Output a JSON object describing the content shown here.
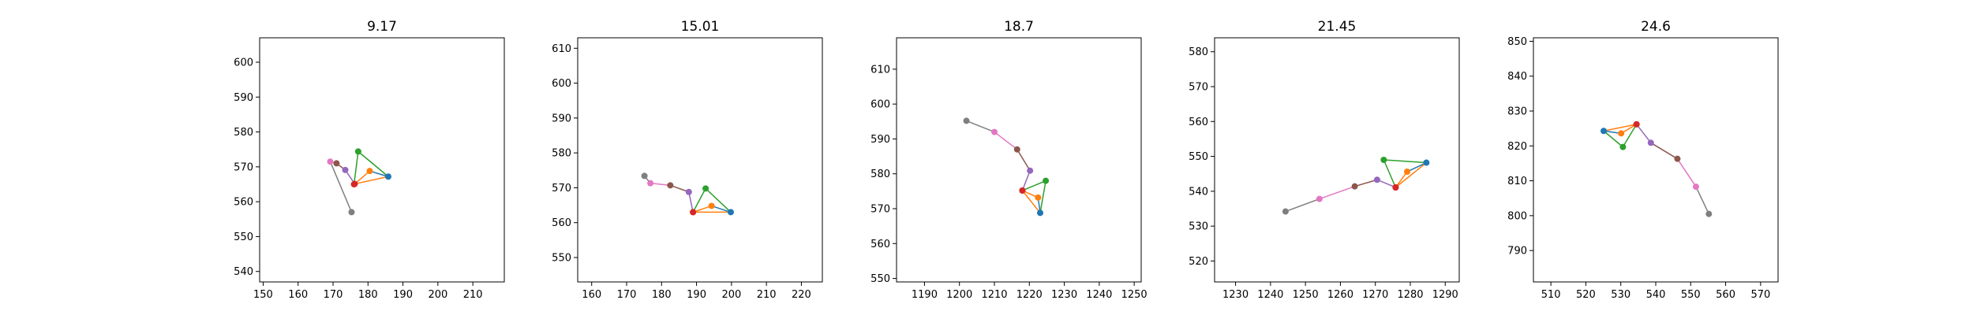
{
  "chart_data": [
    {
      "type": "line",
      "title": "9.17",
      "xlim": [
        149,
        219
      ],
      "ylim": [
        537,
        607
      ],
      "xticks": [
        150,
        160,
        170,
        180,
        190,
        200,
        210
      ],
      "yticks": [
        540,
        550,
        560,
        570,
        580,
        590,
        600
      ],
      "segments": [
        {
          "from": 0,
          "to": 1,
          "color": "#1f77b4"
        },
        {
          "from": 1,
          "to": 2,
          "color": "#ff7f0e"
        },
        {
          "from": 2,
          "to": 0,
          "color": "#ff7f0e"
        },
        {
          "from": 0,
          "to": 3,
          "color": "#2ca02c"
        },
        {
          "from": 3,
          "to": 4,
          "color": "#2ca02c"
        },
        {
          "from": 4,
          "to": 2,
          "color": "#d62728"
        },
        {
          "from": 2,
          "to": 5,
          "color": "#9467bd"
        },
        {
          "from": 5,
          "to": 6,
          "color": "#8c564b"
        },
        {
          "from": 6,
          "to": 7,
          "color": "#e377c2"
        },
        {
          "from": 7,
          "to": 8,
          "color": "#7f7f7f"
        }
      ],
      "points": [
        {
          "x": 185.8,
          "y": 567.2,
          "color": "#1f77b4"
        },
        {
          "x": 180.5,
          "y": 568.8,
          "color": "#ff7f0e"
        },
        {
          "x": 176.2,
          "y": 565.1,
          "color": "#d62728"
        },
        {
          "x": 177.2,
          "y": 574.4,
          "color": "#2ca02c"
        },
        {
          "x": 176.0,
          "y": 565.0,
          "color": "#d62728"
        },
        {
          "x": 173.5,
          "y": 569.1,
          "color": "#9467bd"
        },
        {
          "x": 171.0,
          "y": 571.0,
          "color": "#8c564b"
        },
        {
          "x": 169.2,
          "y": 571.5,
          "color": "#e377c2"
        },
        {
          "x": 175.3,
          "y": 557.0,
          "color": "#7f7f7f"
        }
      ]
    },
    {
      "type": "line",
      "title": "15.01",
      "xlim": [
        156,
        226
      ],
      "ylim": [
        543,
        613
      ],
      "xticks": [
        160,
        170,
        180,
        190,
        200,
        210,
        220
      ],
      "yticks": [
        550,
        560,
        570,
        580,
        590,
        600,
        610
      ],
      "segments": [
        {
          "from": 0,
          "to": 1,
          "color": "#1f77b4"
        },
        {
          "from": 1,
          "to": 2,
          "color": "#ff7f0e"
        },
        {
          "from": 2,
          "to": 0,
          "color": "#ff7f0e"
        },
        {
          "from": 0,
          "to": 3,
          "color": "#2ca02c"
        },
        {
          "from": 3,
          "to": 4,
          "color": "#2ca02c"
        },
        {
          "from": 4,
          "to": 2,
          "color": "#d62728"
        },
        {
          "from": 2,
          "to": 5,
          "color": "#9467bd"
        },
        {
          "from": 5,
          "to": 6,
          "color": "#8c564b"
        },
        {
          "from": 6,
          "to": 7,
          "color": "#e377c2"
        },
        {
          "from": 7,
          "to": 8,
          "color": "#7f7f7f"
        }
      ],
      "points": [
        {
          "x": 199.8,
          "y": 563.0,
          "color": "#1f77b4"
        },
        {
          "x": 194.3,
          "y": 564.8,
          "color": "#ff7f0e"
        },
        {
          "x": 189.0,
          "y": 563.0,
          "color": "#d62728"
        },
        {
          "x": 192.6,
          "y": 569.8,
          "color": "#2ca02c"
        },
        {
          "x": 189.0,
          "y": 563.0,
          "color": "#d62728"
        },
        {
          "x": 187.8,
          "y": 568.8,
          "color": "#9467bd"
        },
        {
          "x": 182.5,
          "y": 570.7,
          "color": "#8c564b"
        },
        {
          "x": 176.8,
          "y": 571.3,
          "color": "#e377c2"
        },
        {
          "x": 175.1,
          "y": 573.4,
          "color": "#7f7f7f"
        }
      ]
    },
    {
      "type": "line",
      "title": "18.7",
      "xlim": [
        1182,
        1252
      ],
      "ylim": [
        549,
        619
      ],
      "xticks": [
        1190,
        1200,
        1210,
        1220,
        1230,
        1240,
        1250
      ],
      "yticks": [
        550,
        560,
        570,
        580,
        590,
        600,
        610
      ],
      "segments": [
        {
          "from": 0,
          "to": 1,
          "color": "#1f77b4"
        },
        {
          "from": 1,
          "to": 2,
          "color": "#ff7f0e"
        },
        {
          "from": 2,
          "to": 0,
          "color": "#ff7f0e"
        },
        {
          "from": 0,
          "to": 3,
          "color": "#2ca02c"
        },
        {
          "from": 3,
          "to": 4,
          "color": "#2ca02c"
        },
        {
          "from": 4,
          "to": 2,
          "color": "#d62728"
        },
        {
          "from": 2,
          "to": 5,
          "color": "#9467bd"
        },
        {
          "from": 5,
          "to": 6,
          "color": "#8c564b"
        },
        {
          "from": 6,
          "to": 7,
          "color": "#e377c2"
        },
        {
          "from": 7,
          "to": 8,
          "color": "#7f7f7f"
        }
      ],
      "points": [
        {
          "x": 1223.1,
          "y": 568.8,
          "color": "#1f77b4"
        },
        {
          "x": 1222.5,
          "y": 573.2,
          "color": "#ff7f0e"
        },
        {
          "x": 1218.0,
          "y": 575.2,
          "color": "#d62728"
        },
        {
          "x": 1224.7,
          "y": 578.0,
          "color": "#2ca02c"
        },
        {
          "x": 1218.0,
          "y": 575.2,
          "color": "#d62728"
        },
        {
          "x": 1220.2,
          "y": 580.9,
          "color": "#9467bd"
        },
        {
          "x": 1216.5,
          "y": 587.0,
          "color": "#8c564b"
        },
        {
          "x": 1210.0,
          "y": 592.0,
          "color": "#e377c2"
        },
        {
          "x": 1202.0,
          "y": 595.2,
          "color": "#7f7f7f"
        }
      ]
    },
    {
      "type": "line",
      "title": "21.45",
      "xlim": [
        1224,
        1294
      ],
      "ylim": [
        514,
        584
      ],
      "xticks": [
        1230,
        1240,
        1250,
        1260,
        1270,
        1280,
        1290
      ],
      "yticks": [
        520,
        530,
        540,
        550,
        560,
        570,
        580
      ],
      "segments": [
        {
          "from": 0,
          "to": 1,
          "color": "#1f77b4"
        },
        {
          "from": 1,
          "to": 2,
          "color": "#ff7f0e"
        },
        {
          "from": 2,
          "to": 0,
          "color": "#ff7f0e"
        },
        {
          "from": 0,
          "to": 3,
          "color": "#2ca02c"
        },
        {
          "from": 3,
          "to": 4,
          "color": "#2ca02c"
        },
        {
          "from": 4,
          "to": 2,
          "color": "#d62728"
        },
        {
          "from": 2,
          "to": 5,
          "color": "#9467bd"
        },
        {
          "from": 5,
          "to": 6,
          "color": "#8c564b"
        },
        {
          "from": 6,
          "to": 7,
          "color": "#e377c2"
        },
        {
          "from": 7,
          "to": 8,
          "color": "#7f7f7f"
        }
      ],
      "points": [
        {
          "x": 1284.6,
          "y": 548.2,
          "color": "#1f77b4"
        },
        {
          "x": 1279.1,
          "y": 545.6,
          "color": "#ff7f0e"
        },
        {
          "x": 1275.8,
          "y": 541.1,
          "color": "#d62728"
        },
        {
          "x": 1272.4,
          "y": 549.0,
          "color": "#2ca02c"
        },
        {
          "x": 1275.8,
          "y": 541.1,
          "color": "#d62728"
        },
        {
          "x": 1270.5,
          "y": 543.3,
          "color": "#9467bd"
        },
        {
          "x": 1264.1,
          "y": 541.4,
          "color": "#8c564b"
        },
        {
          "x": 1254.0,
          "y": 537.8,
          "color": "#e377c2"
        },
        {
          "x": 1244.3,
          "y": 534.2,
          "color": "#7f7f7f"
        }
      ]
    },
    {
      "type": "line",
      "title": "24.6",
      "xlim": [
        505,
        575
      ],
      "ylim": [
        781,
        851
      ],
      "xticks": [
        510,
        520,
        530,
        540,
        550,
        560,
        570
      ],
      "yticks": [
        790,
        800,
        810,
        820,
        830,
        840,
        850
      ],
      "segments": [
        {
          "from": 0,
          "to": 1,
          "color": "#1f77b4"
        },
        {
          "from": 1,
          "to": 2,
          "color": "#ff7f0e"
        },
        {
          "from": 2,
          "to": 0,
          "color": "#ff7f0e"
        },
        {
          "from": 0,
          "to": 3,
          "color": "#2ca02c"
        },
        {
          "from": 3,
          "to": 4,
          "color": "#2ca02c"
        },
        {
          "from": 4,
          "to": 2,
          "color": "#d62728"
        },
        {
          "from": 2,
          "to": 5,
          "color": "#9467bd"
        },
        {
          "from": 5,
          "to": 6,
          "color": "#8c564b"
        },
        {
          "from": 6,
          "to": 7,
          "color": "#e377c2"
        },
        {
          "from": 7,
          "to": 8,
          "color": "#7f7f7f"
        }
      ],
      "points": [
        {
          "x": 525.1,
          "y": 824.3,
          "color": "#1f77b4"
        },
        {
          "x": 530.1,
          "y": 823.6,
          "color": "#ff7f0e"
        },
        {
          "x": 534.5,
          "y": 826.2,
          "color": "#d62728"
        },
        {
          "x": 530.6,
          "y": 819.7,
          "color": "#2ca02c"
        },
        {
          "x": 534.5,
          "y": 826.2,
          "color": "#d62728"
        },
        {
          "x": 538.6,
          "y": 820.9,
          "color": "#9467bd"
        },
        {
          "x": 546.2,
          "y": 816.3,
          "color": "#8c564b"
        },
        {
          "x": 551.5,
          "y": 808.3,
          "color": "#e377c2"
        },
        {
          "x": 555.2,
          "y": 800.5,
          "color": "#7f7f7f"
        }
      ]
    }
  ]
}
